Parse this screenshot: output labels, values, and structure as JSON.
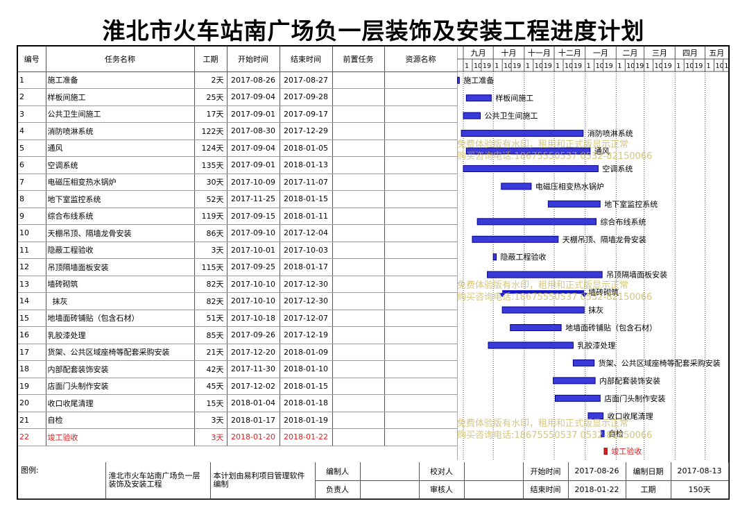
{
  "title": "淮北市火车站南广场负一层装饰及安装工程进度计划",
  "headers": {
    "id": "编号",
    "name": "任务名称",
    "dur": "工期",
    "start": "开始时间",
    "end": "结束时间",
    "pred": "前置任务",
    "res": "资源名称"
  },
  "months": [
    "九月",
    "十月",
    "十一月",
    "十二月",
    "一月",
    "二月",
    "三月",
    "四月",
    "五月"
  ],
  "day_ticks": [
    "1",
    "10",
    "19"
  ],
  "tasks": [
    {
      "id": "1",
      "name": "施工准备",
      "dur": "2天",
      "start": "2017-08-26",
      "end": "2017-08-27",
      "s": "2017-08-26",
      "e": "2017-08-27"
    },
    {
      "id": "2",
      "name": "样板间施工",
      "dur": "25天",
      "start": "2017-09-04",
      "end": "2017-09-28",
      "s": "2017-09-04",
      "e": "2017-09-28"
    },
    {
      "id": "3",
      "name": "公共卫生间施工",
      "dur": "17天",
      "start": "2017-09-01",
      "end": "2017-09-17",
      "s": "2017-09-01",
      "e": "2017-09-17"
    },
    {
      "id": "4",
      "name": "消防喷淋系统",
      "dur": "122天",
      "start": "2017-08-30",
      "end": "2017-12-29",
      "s": "2017-08-30",
      "e": "2017-12-29"
    },
    {
      "id": "5",
      "name": "通风",
      "dur": "124天",
      "start": "2017-09-04",
      "end": "2018-01-05",
      "s": "2017-09-04",
      "e": "2018-01-05"
    },
    {
      "id": "6",
      "name": "空调系统",
      "dur": "135天",
      "start": "2017-09-01",
      "end": "2018-01-13",
      "s": "2017-09-01",
      "e": "2018-01-13"
    },
    {
      "id": "7",
      "name": "电磁压相变热水锅炉",
      "dur": "30天",
      "start": "2017-10-09",
      "end": "2017-11-07",
      "s": "2017-10-09",
      "e": "2017-11-07"
    },
    {
      "id": "8",
      "name": "地下室监控系统",
      "dur": "52天",
      "start": "2017-11-25",
      "end": "2018-01-15",
      "s": "2017-11-25",
      "e": "2018-01-15"
    },
    {
      "id": "9",
      "name": "综合布线系统",
      "dur": "119天",
      "start": "2017-09-15",
      "end": "2018-01-11",
      "s": "2017-09-15",
      "e": "2018-01-11"
    },
    {
      "id": "10",
      "name": "天棚吊顶、隔墙龙骨安装",
      "dur": "86天",
      "start": "2017-09-10",
      "end": "2017-12-04",
      "s": "2017-09-10",
      "e": "2017-12-04"
    },
    {
      "id": "11",
      "name": "隐蔽工程验收",
      "dur": "3天",
      "start": "2017-10-01",
      "end": "2017-10-03",
      "s": "2017-10-01",
      "e": "2017-10-03"
    },
    {
      "id": "12",
      "name": "吊顶隔墙面板安装",
      "dur": "115天",
      "start": "2017-09-25",
      "end": "2018-01-17",
      "s": "2017-09-25",
      "e": "2018-01-17"
    },
    {
      "id": "13",
      "name": "墙砖砌筑",
      "dur": "82天",
      "start": "2017-10-10",
      "end": "2017-12-30",
      "s": "2017-10-10",
      "e": "2017-12-30",
      "summary": true
    },
    {
      "id": "14",
      "name": "  抹灰",
      "dur": "82天",
      "start": "2017-10-10",
      "end": "2017-12-30",
      "s": "2017-10-10",
      "e": "2017-12-30"
    },
    {
      "id": "15",
      "name": "地墙面砖铺贴（包含石材）",
      "dur": "51天",
      "start": "2017-10-18",
      "end": "2017-12-07",
      "s": "2017-10-18",
      "e": "2017-12-07"
    },
    {
      "id": "16",
      "name": "乳胶漆处理",
      "dur": "85天",
      "start": "2017-09-26",
      "end": "2017-12-19",
      "s": "2017-09-26",
      "e": "2017-12-19"
    },
    {
      "id": "17",
      "name": "货架、公共区域座椅等配套采购安装",
      "dur": "21天",
      "start": "2017-12-20",
      "end": "2018-01-09",
      "s": "2017-12-20",
      "e": "2018-01-09"
    },
    {
      "id": "18",
      "name": "内部配套装饰安装",
      "dur": "42天",
      "start": "2017-11-30",
      "end": "2018-01-10",
      "s": "2017-11-30",
      "e": "2018-01-10"
    },
    {
      "id": "19",
      "name": "店面门头制作安装",
      "dur": "45天",
      "start": "2017-12-02",
      "end": "2018-01-15",
      "s": "2017-12-02",
      "e": "2018-01-15"
    },
    {
      "id": "20",
      "name": "收口收尾清理",
      "dur": "15天",
      "start": "2018-01-04",
      "end": "2018-01-18",
      "s": "2018-01-04",
      "e": "2018-01-18"
    },
    {
      "id": "21",
      "name": "自检",
      "dur": "3天",
      "start": "2018-01-17",
      "end": "2018-01-19",
      "s": "2018-01-17",
      "e": "2018-01-19"
    },
    {
      "id": "22",
      "name": "竣工验收",
      "dur": "3天",
      "start": "2018-01-20",
      "end": "2018-01-22",
      "s": "2018-01-20",
      "e": "2018-01-22",
      "critical": true
    }
  ],
  "footer": {
    "legend_label": "图例:",
    "project_name": "淮北市火车站南广场负一层装饰及安装工程",
    "software_note": "本计划由易利项目管理软件编制",
    "compiler_label": "编制人",
    "checker_label": "校对人",
    "owner_label": "负责人",
    "reviewer_label": "审核人",
    "start_label": "开始时间",
    "start_value": "2017-08-26",
    "end_label": "结束时间",
    "end_value": "2018-01-22",
    "date_label": "编制日期",
    "date_value": "2017-08-13",
    "dur_label": "工期",
    "dur_value": "150天"
  },
  "watermark": {
    "line1": "免费体验版有水印，租用和正式版显示正常",
    "line2": "购买咨询电话:18675550537 0532-82150066"
  },
  "colors": {
    "bar_fill": "#3a3ad8",
    "bar_border": "#00008b",
    "critical": "#e02020",
    "text_red": "#e02020"
  }
}
